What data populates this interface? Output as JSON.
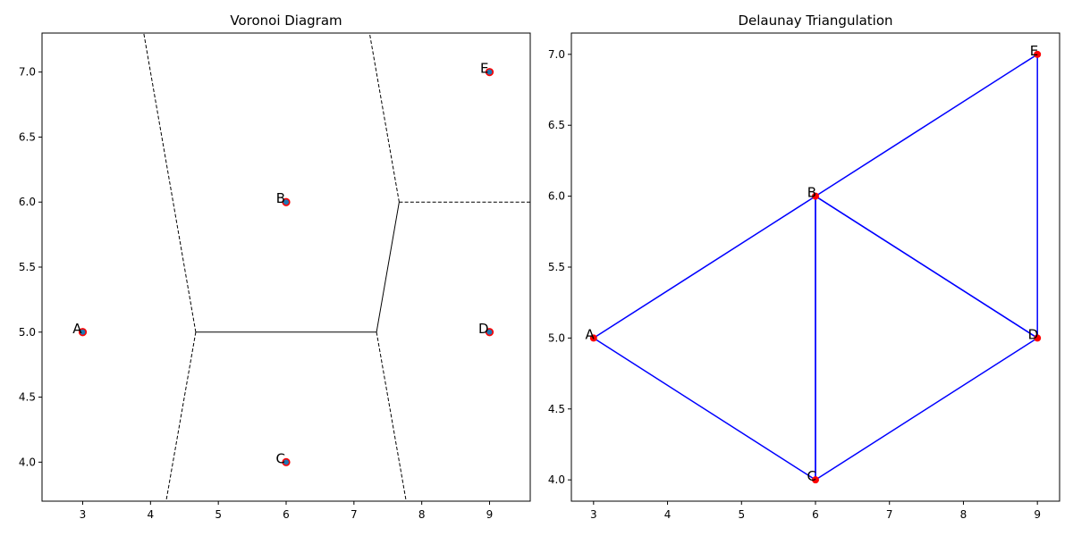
{
  "chart_data": [
    {
      "type": "scatter",
      "title": "Voronoi Diagram",
      "xlabel": "",
      "ylabel": "",
      "xlim": [
        2.4,
        9.6
      ],
      "ylim": [
        3.7,
        7.3
      ],
      "xticks": [
        3,
        4,
        5,
        6,
        7,
        8,
        9
      ],
      "yticks": [
        4.0,
        4.5,
        5.0,
        5.5,
        6.0,
        6.5,
        7.0
      ],
      "yticklabels": [
        "4.0",
        "4.5",
        "5.0",
        "5.5",
        "6.0",
        "6.5",
        "7.0"
      ],
      "grid": false,
      "points": [
        {
          "label": "A",
          "x": 3,
          "y": 5
        },
        {
          "label": "B",
          "x": 6,
          "y": 6
        },
        {
          "label": "C",
          "x": 6,
          "y": 4
        },
        {
          "label": "D",
          "x": 9,
          "y": 5
        },
        {
          "label": "E",
          "x": 9,
          "y": 7
        }
      ],
      "point_color": "#1f77b4",
      "point_edge_color": "#ff0000",
      "vertices": [
        {
          "x": 4.667,
          "y": 5.0
        },
        {
          "x": 7.333,
          "y": 5.0
        },
        {
          "x": 7.667,
          "y": 6.0
        }
      ],
      "finite_edges": [
        [
          [
            4.667,
            5.0
          ],
          [
            7.333,
            5.0
          ]
        ],
        [
          [
            7.333,
            5.0
          ],
          [
            7.667,
            6.0
          ]
        ]
      ],
      "infinite_edges": [
        [
          [
            4.667,
            5.0
          ],
          [
            3.89,
            7.33
          ]
        ],
        [
          [
            4.667,
            5.0
          ],
          [
            4.23,
            3.7
          ]
        ],
        [
          [
            7.333,
            5.0
          ],
          [
            7.77,
            3.7
          ]
        ],
        [
          [
            7.667,
            6.0
          ],
          [
            7.22,
            7.33
          ]
        ],
        [
          [
            7.667,
            6.0
          ],
          [
            9.6,
            6.0
          ]
        ]
      ],
      "edge_color": "#000000"
    },
    {
      "type": "line",
      "title": "Delaunay Triangulation",
      "xlabel": "",
      "ylabel": "",
      "xlim": [
        2.7,
        9.3
      ],
      "ylim": [
        3.85,
        7.15
      ],
      "xticks": [
        3,
        4,
        5,
        6,
        7,
        8,
        9
      ],
      "yticks": [
        4.0,
        4.5,
        5.0,
        5.5,
        6.0,
        6.5,
        7.0
      ],
      "yticklabels": [
        "4.0",
        "4.5",
        "5.0",
        "5.5",
        "6.0",
        "6.5",
        "7.0"
      ],
      "grid": false,
      "points": [
        {
          "label": "A",
          "x": 3,
          "y": 5
        },
        {
          "label": "B",
          "x": 6,
          "y": 6
        },
        {
          "label": "C",
          "x": 6,
          "y": 4
        },
        {
          "label": "D",
          "x": 9,
          "y": 5
        },
        {
          "label": "E",
          "x": 9,
          "y": 7
        }
      ],
      "point_color": "#ff0000",
      "triangles": [
        [
          "A",
          "B",
          "C"
        ],
        [
          "B",
          "C",
          "D"
        ],
        [
          "B",
          "D",
          "E"
        ]
      ],
      "edge_color": "#0000ff"
    }
  ]
}
